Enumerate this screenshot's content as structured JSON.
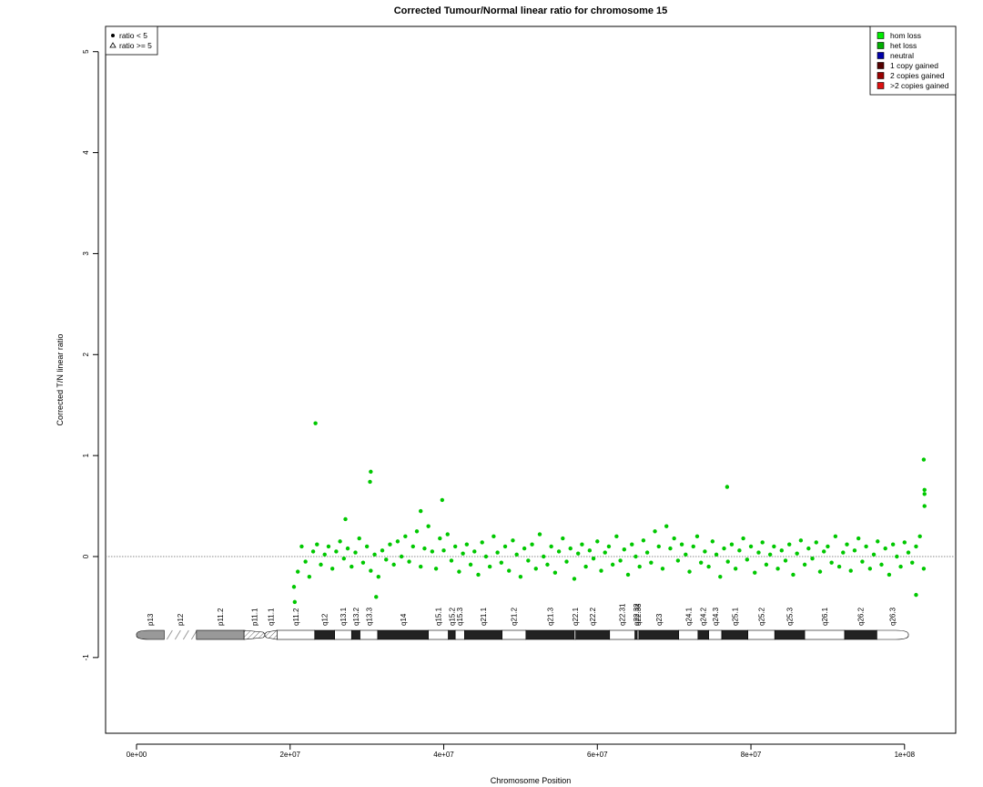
{
  "chart_data": {
    "type": "scatter",
    "title": "Corrected Tumour/Normal linear ratio for chromosome  15",
    "x_label": "Chromosome Position",
    "y_label": "Corrected T/N linear ratio",
    "xlim": [
      -4030000,
      106660000
    ],
    "ylim": [
      -1.75,
      5.25
    ],
    "xticks": [
      {
        "value": 0,
        "label": "0e+00"
      },
      {
        "value": 20000000,
        "label": "2e+07"
      },
      {
        "value": 40000000,
        "label": "4e+07"
      },
      {
        "value": 60000000,
        "label": "6e+07"
      },
      {
        "value": 80000000,
        "label": "8e+07"
      },
      {
        "value": 100000000,
        "label": "1e+08"
      }
    ],
    "yticks": [
      -1,
      0,
      1,
      2,
      3,
      4,
      5
    ],
    "hline": 0,
    "series": [
      {
        "name": "ratio < 5",
        "marker": "circle",
        "color": "#00c800",
        "x": [
          20500000.0,
          21000000.0,
          21500000.0,
          22000000.0,
          22500000.0,
          23000000.0,
          23500000.0,
          24000000.0,
          24500000.0,
          25000000.0,
          25500000.0,
          26000000.0,
          26500000.0,
          27000000.0,
          27500000.0,
          28000000.0,
          28500000.0,
          29000000.0,
          29500000.0,
          30000000.0,
          30500000.0,
          31000000.0,
          31500000.0,
          32000000.0,
          32500000.0,
          33000000.0,
          33500000.0,
          34000000.0,
          34500000.0,
          35000000.0,
          35500000.0,
          36000000.0,
          36500000.0,
          37000000.0,
          37500000.0,
          38000000.0,
          38500000.0,
          39000000.0,
          39500000.0,
          40000000.0,
          40500000.0,
          41000000.0,
          41500000.0,
          42000000.0,
          42500000.0,
          43000000.0,
          43500000.0,
          44000000.0,
          44500000.0,
          45000000.0,
          45500000.0,
          46000000.0,
          46500000.0,
          47000000.0,
          47500000.0,
          48000000.0,
          48500000.0,
          49000000.0,
          49500000.0,
          50000000.0,
          50500000.0,
          51000000.0,
          51500000.0,
          52000000.0,
          52500000.0,
          53000000.0,
          53500000.0,
          54000000.0,
          54500000.0,
          55000000.0,
          55500000.0,
          56000000.0,
          56500000.0,
          57000000.0,
          57500000.0,
          58000000.0,
          58500000.0,
          59000000.0,
          59500000.0,
          60000000.0,
          60500000.0,
          61000000.0,
          61500000.0,
          62000000.0,
          62500000.0,
          63000000.0,
          63500000.0,
          64000000.0,
          64500000.0,
          65000000.0,
          65500000.0,
          66000000.0,
          66500000.0,
          67000000.0,
          67500000.0,
          68000000.0,
          68500000.0,
          69000000.0,
          69500000.0,
          70000000.0,
          70500000.0,
          71000000.0,
          71500000.0,
          72000000.0,
          72500000.0,
          73000000.0,
          73500000.0,
          74000000.0,
          74500000.0,
          75000000.0,
          75500000.0,
          76000000.0,
          76500000.0,
          77000000.0,
          77500000.0,
          78000000.0,
          78500000.0,
          79000000.0,
          79500000.0,
          80000000.0,
          80500000.0,
          81000000.0,
          81500000.0,
          82000000.0,
          82500000.0,
          83000000.0,
          83500000.0,
          84000000.0,
          84500000.0,
          85000000.0,
          85500000.0,
          86000000.0,
          86500000.0,
          87000000.0,
          87500000.0,
          88000000.0,
          88500000.0,
          89000000.0,
          89500000.0,
          90000000.0,
          90500000.0,
          91000000.0,
          91500000.0,
          92000000.0,
          92500000.0,
          93000000.0,
          93500000.0,
          94000000.0,
          94500000.0,
          95000000.0,
          95500000.0,
          96000000.0,
          96500000.0,
          97000000.0,
          97500000.0,
          98000000.0,
          98500000.0,
          99000000.0,
          99500000.0,
          100000000.0,
          100500000.0,
          101000000.0,
          101500000.0,
          102000000.0,
          102500000.0,
          23300000.0,
          30500000.0,
          30400000.0,
          39800000.0,
          76900000.0,
          102500000.0,
          102600000.0,
          102600000.0,
          102600000.0,
          20600000.0,
          31200000.0,
          101500000.0,
          37000000.0,
          27200000.0
        ],
        "values": [
          -0.3,
          -0.15,
          0.1,
          -0.05,
          -0.2,
          0.05,
          0.12,
          -0.08,
          0.02,
          0.1,
          -0.12,
          0.05,
          0.15,
          -0.02,
          0.08,
          -0.1,
          0.04,
          0.18,
          -0.06,
          0.1,
          -0.14,
          0.02,
          -0.2,
          0.06,
          -0.03,
          0.12,
          -0.08,
          0.15,
          0.0,
          0.2,
          -0.05,
          0.1,
          0.25,
          -0.1,
          0.08,
          0.3,
          0.05,
          -0.12,
          0.18,
          0.06,
          0.22,
          -0.04,
          0.1,
          -0.15,
          0.03,
          0.12,
          -0.08,
          0.05,
          -0.18,
          0.14,
          0.0,
          -0.1,
          0.2,
          0.04,
          -0.06,
          0.1,
          -0.14,
          0.16,
          0.02,
          -0.2,
          0.08,
          -0.04,
          0.12,
          -0.12,
          0.22,
          0.0,
          -0.08,
          0.1,
          -0.16,
          0.05,
          0.18,
          -0.05,
          0.08,
          -0.22,
          0.03,
          0.12,
          -0.1,
          0.06,
          -0.02,
          0.15,
          -0.14,
          0.04,
          0.1,
          -0.08,
          0.2,
          -0.04,
          0.07,
          -0.18,
          0.12,
          0.0,
          -0.1,
          0.16,
          0.04,
          -0.06,
          0.25,
          0.1,
          -0.12,
          0.3,
          0.08,
          0.18,
          -0.04,
          0.12,
          0.02,
          -0.15,
          0.1,
          0.2,
          -0.06,
          0.05,
          -0.1,
          0.15,
          0.02,
          -0.2,
          0.08,
          -0.05,
          0.12,
          -0.12,
          0.06,
          0.18,
          -0.03,
          0.1,
          -0.16,
          0.04,
          0.14,
          -0.08,
          0.02,
          0.1,
          -0.12,
          0.06,
          -0.04,
          0.12,
          -0.18,
          0.03,
          0.16,
          -0.08,
          0.08,
          -0.02,
          0.14,
          -0.15,
          0.05,
          0.1,
          -0.06,
          0.2,
          -0.1,
          0.04,
          0.12,
          -0.14,
          0.06,
          0.18,
          -0.05,
          0.1,
          -0.12,
          0.02,
          0.15,
          -0.08,
          0.08,
          -0.18,
          0.12,
          0.0,
          -0.1,
          0.14,
          0.04,
          -0.06,
          0.1,
          0.2,
          -0.12,
          1.32,
          0.84,
          0.74,
          0.56,
          0.69,
          0.96,
          0.66,
          0.62,
          0.5,
          -0.45,
          -0.4,
          -0.38,
          0.45,
          0.37
        ]
      },
      {
        "name": "ratio >= 5",
        "marker": "triangle",
        "color": "#00c800",
        "x": [],
        "values": []
      }
    ],
    "legend_position": "top-left",
    "copy_number_legend": {
      "position": "top-right",
      "items": [
        {
          "label": "hom loss",
          "color": "#00ee00"
        },
        {
          "label": "het loss",
          "color": "#00b000"
        },
        {
          "label": "neutral",
          "color": "#0000aa"
        },
        {
          "label": "1 copy gained",
          "color": "#550000"
        },
        {
          "label": "2 copies gained",
          "color": "#990000"
        },
        {
          "label": ">2 copies gained",
          "color": "#dd1111"
        }
      ]
    },
    "bands": [
      {
        "name": "p13",
        "start": 0,
        "end": 3600000,
        "stain": "gvar"
      },
      {
        "name": "p12",
        "start": 3600000,
        "end": 7800000,
        "stain": "stalk"
      },
      {
        "name": "p11.2",
        "start": 7800000,
        "end": 14000000,
        "stain": "gpos50"
      },
      {
        "name": "p11.1",
        "start": 14000000,
        "end": 16700000,
        "stain": "acen-p"
      },
      {
        "name": "q11.1",
        "start": 16700000,
        "end": 18300000,
        "stain": "acen-q"
      },
      {
        "name": "q11.2",
        "start": 18300000,
        "end": 23200000,
        "stain": "gneg"
      },
      {
        "name": "q12",
        "start": 23200000,
        "end": 25800000,
        "stain": "gpos100"
      },
      {
        "name": "q13.1",
        "start": 25800000,
        "end": 28000000,
        "stain": "gneg"
      },
      {
        "name": "q13.2",
        "start": 28000000,
        "end": 29100000,
        "stain": "gpos100"
      },
      {
        "name": "q13.3",
        "start": 29100000,
        "end": 31400000,
        "stain": "gneg"
      },
      {
        "name": "q14",
        "start": 31400000,
        "end": 38000000,
        "stain": "gpos100"
      },
      {
        "name": "q15.1",
        "start": 38000000,
        "end": 40600000,
        "stain": "gneg"
      },
      {
        "name": "q15.2",
        "start": 40600000,
        "end": 41500000,
        "stain": "gpos100"
      },
      {
        "name": "q15.3",
        "start": 41500000,
        "end": 42700000,
        "stain": "gneg"
      },
      {
        "name": "q21.1",
        "start": 42700000,
        "end": 47600000,
        "stain": "gpos100"
      },
      {
        "name": "q21.2",
        "start": 47600000,
        "end": 50700000,
        "stain": "gneg"
      },
      {
        "name": "q21.3",
        "start": 50700000,
        "end": 57000000,
        "stain": "gpos100"
      },
      {
        "name": "q22.1",
        "start": 57000000,
        "end": 57200000,
        "stain": "gneg"
      },
      {
        "name": "q22.2",
        "start": 57200000,
        "end": 61600000,
        "stain": "gpos100"
      },
      {
        "name": "q22.31",
        "start": 61600000,
        "end": 64900000,
        "stain": "gneg"
      },
      {
        "name": "q22.32",
        "start": 64900000,
        "end": 65200000,
        "stain": "gpos100"
      },
      {
        "name": "q22.33",
        "start": 65200000,
        "end": 65400000,
        "stain": "gneg"
      },
      {
        "name": "q23",
        "start": 65400000,
        "end": 70600000,
        "stain": "gpos100"
      },
      {
        "name": "q24.1",
        "start": 70600000,
        "end": 73100000,
        "stain": "gneg"
      },
      {
        "name": "q24.2",
        "start": 73100000,
        "end": 74500000,
        "stain": "gpos100"
      },
      {
        "name": "q24.3",
        "start": 74500000,
        "end": 76200000,
        "stain": "gneg"
      },
      {
        "name": "q25.1",
        "start": 76200000,
        "end": 79600000,
        "stain": "gpos100"
      },
      {
        "name": "q25.2",
        "start": 79600000,
        "end": 83100000,
        "stain": "gneg"
      },
      {
        "name": "q25.3",
        "start": 83100000,
        "end": 87000000,
        "stain": "gpos100"
      },
      {
        "name": "q26.1",
        "start": 87000000,
        "end": 92200000,
        "stain": "gneg"
      },
      {
        "name": "q26.2",
        "start": 92200000,
        "end": 96400000,
        "stain": "gpos100"
      },
      {
        "name": "q26.3",
        "start": 96400000,
        "end": 100500000,
        "stain": "gneg"
      }
    ]
  }
}
